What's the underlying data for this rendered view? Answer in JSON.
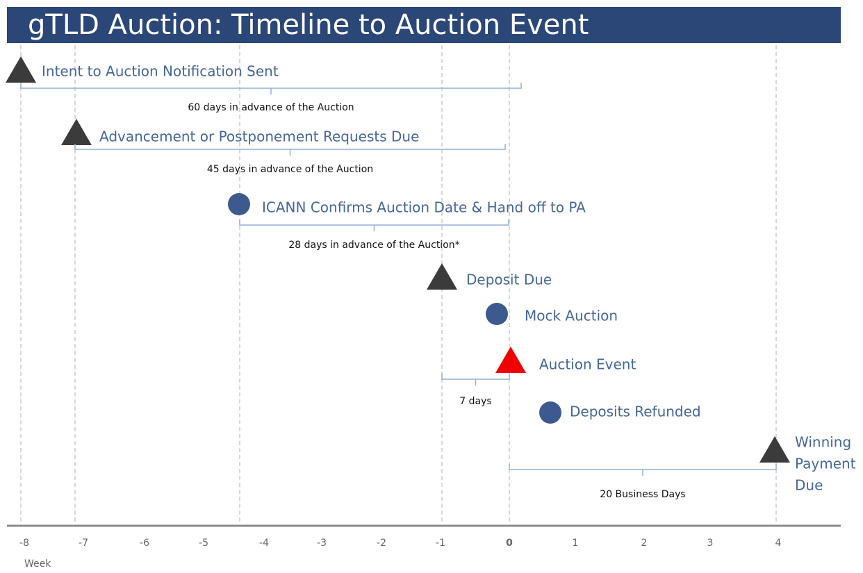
{
  "header": {
    "title": "gTLD Auction: Timeline to Auction Event"
  },
  "axis": {
    "ticks": [
      "-8",
      "-7",
      "-6",
      "-5",
      "-4",
      "-3",
      "-2",
      "-1",
      "0",
      "1",
      "2",
      "3",
      "4"
    ],
    "label": "Week"
  },
  "events": [
    {
      "label": "Intent to Auction Notification Sent"
    },
    {
      "label": "Advancement or Postponement Requests Due"
    },
    {
      "label": "ICANN Confirms Auction Date & Hand off to PA"
    },
    {
      "label": "Deposit Due"
    },
    {
      "label": "Mock Auction"
    },
    {
      "label": "Auction Event"
    },
    {
      "label": "Deposits Refunded"
    },
    {
      "lines": [
        "Winning",
        "Payment",
        "Due"
      ]
    }
  ],
  "spans": [
    {
      "label": "60 days in advance of the Auction"
    },
    {
      "label": "45 days in advance of the Auction"
    },
    {
      "label": "28 days in advance of the Auction*"
    },
    {
      "label": "7 days"
    },
    {
      "label": "20 Business Days"
    }
  ]
}
